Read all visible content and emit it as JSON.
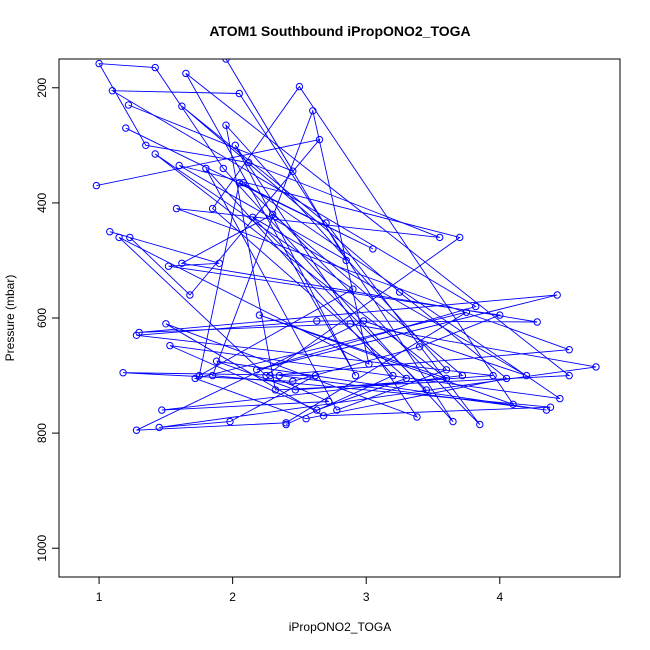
{
  "chart_data": {
    "type": "line",
    "title": "ATOM1 Southbound iPropONO2_TOGA",
    "xlabel": "iPropONO2_TOGA",
    "ylabel": "Pressure (mbar)",
    "xlim": [
      0.7,
      4.9
    ],
    "ylim": [
      1050,
      150
    ],
    "y_reversed": true,
    "x_ticks": [
      1,
      2,
      3,
      4
    ],
    "y_ticks": [
      200,
      400,
      600,
      800,
      1000
    ],
    "line_color": "#0000ff",
    "marker": "open-circle",
    "grid": false,
    "legend": "none",
    "series": [
      {
        "x": [
          0.98,
          2.65,
          1.68,
          1.23,
          1.08,
          1.9,
          1.52,
          4.0,
          3.4,
          2.45,
          1.18,
          2.62,
          1.98,
          1.45,
          4.72,
          2.88,
          1.3,
          4.43,
          2.18,
          3.82,
          1.1,
          2.05,
          3.65,
          1.93,
          1.42,
          1.0,
          1.35,
          2.12,
          3.55,
          1.58,
          4.52,
          2.28,
          2.72,
          1.47,
          3.72,
          2.3,
          1.62,
          4.28,
          2.63,
          1.28,
          3.95,
          2.47,
          1.88,
          4.35,
          2.35
        ],
        "y": [
          370,
          290,
          560,
          460,
          450,
          505,
          510,
          595,
          650,
          710,
          695,
          700,
          780,
          790,
          685,
          610,
          625,
          560,
          690,
          580,
          205,
          210,
          780,
          340,
          165,
          158,
          300,
          330,
          460,
          410,
          655,
          700,
          745,
          760,
          700,
          420,
          505,
          607,
          605,
          630,
          700,
          725,
          675,
          760,
          700
        ]
      },
      {
        "x": [
          1.2,
          3.05,
          2.05,
          1.75,
          2.9,
          1.42,
          3.6,
          2.2,
          4.1,
          2.5,
          1.85,
          3.3,
          2.63,
          1.53,
          4.45,
          2.08,
          3.85,
          2.7,
          1.62,
          3.25,
          4.05,
          2.55,
          1.72,
          3.75,
          2.4,
          1.28,
          2.98,
          4.2,
          2.15,
          3.45
        ],
        "y": [
          270,
          480,
          365,
          700,
          550,
          315,
          705,
          595,
          750,
          198,
          410,
          705,
          760,
          648,
          740,
          365,
          785,
          435,
          232,
          555,
          705,
          775,
          705,
          590,
          782,
          795,
          605,
          700,
          425,
          725
        ]
      },
      {
        "x": [
          1.22,
          2.45,
          1.95,
          2.85,
          1.6,
          3.7,
          2.25,
          1.15,
          3.02,
          2.6,
          1.85,
          4.38,
          2.68,
          1.5,
          3.38,
          2.02,
          2.92,
          1.65,
          4.52,
          2.32,
          1.95,
          3.6,
          2.78,
          1.8,
          3.2,
          2.4
        ],
        "y": [
          230,
          345,
          150,
          500,
          335,
          460,
          700,
          460,
          680,
          240,
          700,
          755,
          770,
          610,
          772,
          300,
          700,
          175,
          700,
          725,
          265,
          690,
          760,
          340,
          700,
          785
        ]
      }
    ]
  }
}
